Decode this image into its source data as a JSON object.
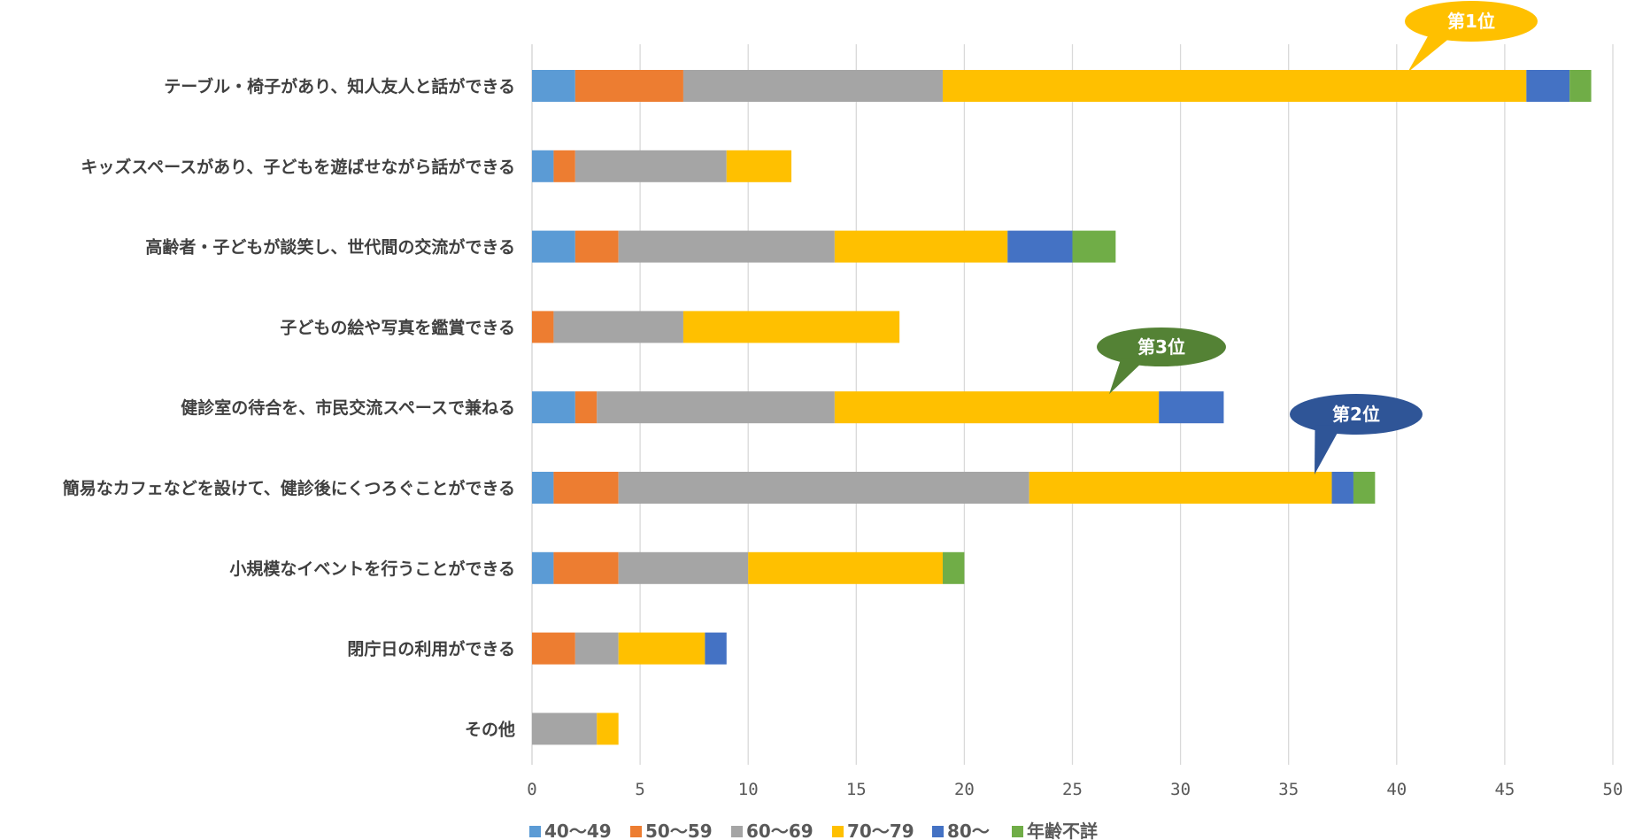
{
  "chart_data": {
    "type": "bar",
    "orientation": "horizontal",
    "stacked": true,
    "categories": [
      "テーブル・椅子があり、知人友人と話ができる",
      "キッズスペースがあり、子どもを遊ばせながら話ができる",
      "高齢者・子どもが談笑し、世代間の交流ができる",
      "子どもの絵や写真を鑑賞できる",
      "健診室の待合を、市民交流スペースで兼ねる",
      "簡易なカフェなどを設けて、健診後にくつろぐことができる",
      "小規模なイベントを行うことができる",
      "閉庁日の利用ができる",
      "その他"
    ],
    "series": [
      {
        "name": "40〜49",
        "color": "#5B9BD5",
        "values": [
          2,
          1,
          2,
          0,
          2,
          1,
          1,
          0,
          0
        ]
      },
      {
        "name": "50〜59",
        "color": "#ED7D31",
        "values": [
          5,
          1,
          2,
          1,
          1,
          3,
          3,
          2,
          0
        ]
      },
      {
        "name": "60〜69",
        "color": "#A5A5A5",
        "values": [
          12,
          7,
          10,
          6,
          11,
          19,
          6,
          2,
          3
        ]
      },
      {
        "name": "70〜79",
        "color": "#FFC000",
        "values": [
          27,
          3,
          8,
          10,
          15,
          14,
          9,
          4,
          1
        ]
      },
      {
        "name": "80〜",
        "color": "#4472C4",
        "values": [
          2,
          0,
          3,
          0,
          3,
          1,
          0,
          1,
          0
        ]
      },
      {
        "name": "年齢不詳",
        "color": "#70AD47",
        "values": [
          1,
          0,
          2,
          0,
          0,
          1,
          1,
          0,
          0
        ]
      }
    ],
    "xlim": [
      0,
      50
    ],
    "xticks": [
      "0",
      "5",
      "10",
      "15",
      "20",
      "25",
      "30",
      "35",
      "40",
      "45",
      "50"
    ],
    "grid": "vertical",
    "legend_position": "bottom",
    "annotations": [
      {
        "text": "第1位",
        "category_index": 0,
        "x_value": 40.5,
        "color": "#FFC000"
      },
      {
        "text": "第2位",
        "category_index": 5,
        "x_value": 36.2,
        "color": "#2F5597"
      },
      {
        "text": "第3位",
        "category_index": 4,
        "x_value": 26.7,
        "color": "#548235"
      }
    ]
  }
}
